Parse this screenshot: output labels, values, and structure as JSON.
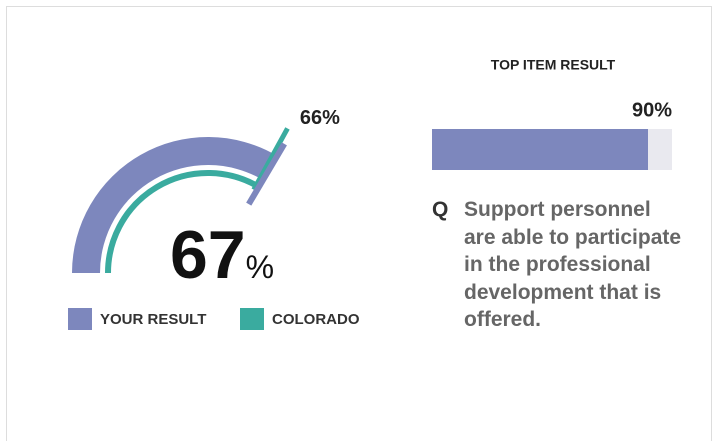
{
  "chart_data": [
    {
      "type": "gauge",
      "series": [
        {
          "name": "YOUR RESULT",
          "color": "#7d87bd",
          "values": [
            67
          ],
          "value_labels": [
            "67%"
          ]
        },
        {
          "name": "COLORADO",
          "color": "#3aab9f",
          "values": [
            66
          ],
          "value_labels": [
            "66%"
          ]
        }
      ],
      "ylim": [
        0,
        100
      ]
    },
    {
      "type": "bar",
      "title": "TOP ITEM RESULT",
      "category_prefix": "Q",
      "categories": [
        "Support personnel are able to participate in the professional development that is offered."
      ],
      "values": [
        90
      ],
      "value_labels": [
        "90%"
      ],
      "color": "#7d87bd",
      "track_color": "#e9e9ef",
      "ylim": [
        0,
        100
      ]
    }
  ]
}
